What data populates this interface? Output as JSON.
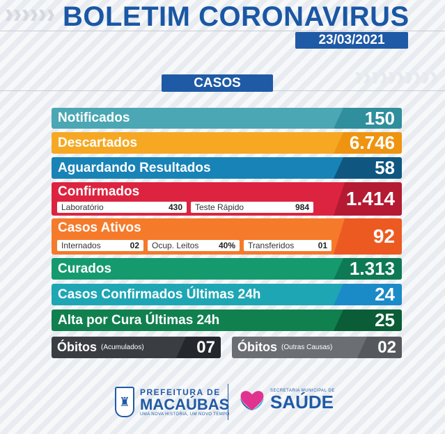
{
  "header": {
    "title": "BOLETIM CORONAVIRUS",
    "date": "23/03/2021"
  },
  "section": {
    "title": "CASOS"
  },
  "rows": {
    "notificados": {
      "label": "Notificados",
      "value": "150"
    },
    "descartados": {
      "label": "Descartados",
      "value": "6.746"
    },
    "aguardando": {
      "label": "Aguardando Resultados",
      "value": "58"
    },
    "confirmados": {
      "label": "Confirmados",
      "value": "1.414",
      "subs": [
        {
          "label": "Laboratório",
          "value": "430"
        },
        {
          "label": "Teste Rápido",
          "value": "984"
        }
      ]
    },
    "ativos": {
      "label": "Casos Ativos",
      "value": "92",
      "subs": [
        {
          "label": "Internados",
          "value": "02"
        },
        {
          "label": "Ocup. Leitos",
          "value": "40%"
        },
        {
          "label": "Transferidos",
          "value": "01"
        }
      ]
    },
    "curados": {
      "label": "Curados",
      "value": "1.313"
    },
    "confirmados24": {
      "label": "Casos Confirmados Últimas 24h",
      "value": "24"
    },
    "alta24": {
      "label": "Alta por Cura Últimas 24h",
      "value": "25"
    }
  },
  "obitos": {
    "acumulados": {
      "label": "Óbitos",
      "note": "(Acumulados)",
      "value": "07"
    },
    "outras": {
      "label": "Óbitos",
      "note": "(Outras Causas)",
      "value": "02"
    }
  },
  "footer": {
    "prefeitura_top": "PREFEITURA DE",
    "prefeitura_name": "MACAÚBAS",
    "prefeitura_slogan": "UMA NOVA HISTÓRIA, UM NOVO TEMPO",
    "saude_top": "SECRETARIA MUNICIPAL DE",
    "saude_name": "SAÚDE"
  }
}
